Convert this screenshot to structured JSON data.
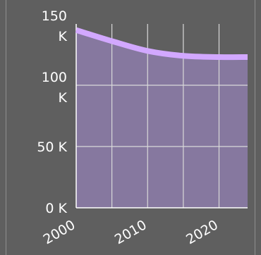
{
  "colors": {
    "background": "#5f5f5f",
    "plot_fill": "#86789f",
    "series_line": "#d2a8ff",
    "grid": "#d9d9d9",
    "axis": "#ffffff",
    "text": "#ffffff"
  },
  "chart_data": {
    "type": "area",
    "title": "",
    "xlabel": "",
    "ylabel": "",
    "x": [
      2000,
      2005,
      2010,
      2015,
      2020,
      2024
    ],
    "values": [
      145000,
      136000,
      128000,
      124000,
      123000,
      123000
    ],
    "xlim": [
      2000,
      2024
    ],
    "ylim": [
      0,
      150000
    ],
    "grid": true,
    "legend": "none",
    "y_ticks": [
      {
        "value": 0,
        "label": "0 K"
      },
      {
        "value": 50000,
        "label": "50 K"
      },
      {
        "value": 100000,
        "label": "100 K"
      },
      {
        "value": 150000,
        "label": "150 K"
      }
    ],
    "x_ticks": [
      {
        "value": 2000,
        "label": "2000"
      },
      {
        "value": 2010,
        "label": "2010"
      },
      {
        "value": 2020,
        "label": "2020"
      }
    ],
    "x_grid_values": [
      2005,
      2010,
      2015,
      2020
    ]
  }
}
